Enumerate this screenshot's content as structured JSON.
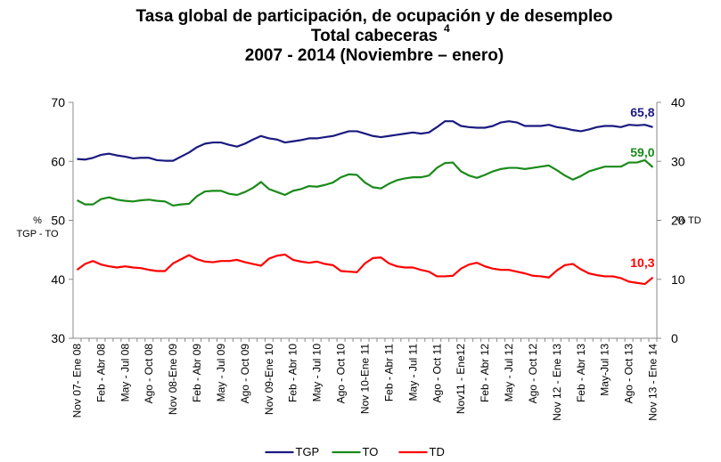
{
  "chart_data": {
    "type": "line",
    "title": [
      "Tasa global de participación, de ocupación y de desempleo",
      "Total cabeceras",
      "2007 - 2014 (Noviembre – enero)"
    ],
    "title_superscript": "4",
    "y_label": [
      "%",
      "TGP - TO"
    ],
    "y2_label": "% TD",
    "categories": [
      "Nov 07- Ene 08",
      null,
      null,
      "Feb - Abr 08",
      null,
      null,
      "May - Jul 08",
      null,
      null,
      "Ago - Oct 08",
      null,
      null,
      "Nov 08-Ene 09",
      null,
      null,
      "Feb - Abr 09",
      null,
      null,
      "May - Jul 09",
      null,
      null,
      "Ago - Oct 09",
      null,
      null,
      "Nov 09-Ene 10",
      null,
      null,
      "Feb - Abr 10",
      null,
      null,
      "May - Jul 10",
      null,
      null,
      "Ago - Oct 10",
      null,
      null,
      "Nov 10-Ene 11",
      null,
      null,
      "Feb - Abr 11",
      null,
      null,
      "May - Jul 11",
      null,
      null,
      "Ago - Oct 11",
      null,
      null,
      "Nov11 - Ene12",
      null,
      null,
      "Feb - Abr 12",
      null,
      null,
      "May - Jul 12",
      null,
      null,
      "Ago - Oct 12",
      null,
      null,
      "Nov 12 - Ene 13",
      null,
      null,
      "Feb - Abr 13",
      null,
      null,
      "May-Jul 13",
      null,
      null,
      "Ago - Oct 13",
      null,
      null,
      "Nov 13 - Ene 14"
    ],
    "ylim": [
      30,
      70
    ],
    "yticks": [
      30,
      40,
      50,
      60,
      70
    ],
    "y2lim": [
      0,
      40
    ],
    "y2ticks": [
      0,
      10,
      20,
      30,
      40
    ],
    "grid": false,
    "legend": "bottom",
    "series": [
      {
        "name": "TGP",
        "color": "#1a1a80",
        "values": [
          60.4,
          60.3,
          60.6,
          61.1,
          61.3,
          61.0,
          60.8,
          60.5,
          60.6,
          60.6,
          60.2,
          60.1,
          60.1,
          60.8,
          61.5,
          62.4,
          63.0,
          63.2,
          63.2,
          62.8,
          62.5,
          63.0,
          63.7,
          64.3,
          63.9,
          63.7,
          63.2,
          63.4,
          63.6,
          63.9,
          63.9,
          64.1,
          64.3,
          64.7,
          65.1,
          65.1,
          64.7,
          64.3,
          64.1,
          64.3,
          64.5,
          64.7,
          64.9,
          64.7,
          64.9,
          65.8,
          66.8,
          66.8,
          66.0,
          65.8,
          65.7,
          65.7,
          66.0,
          66.6,
          66.8,
          66.6,
          66.0,
          66.0,
          66.0,
          66.2,
          65.8,
          65.6,
          65.3,
          65.1,
          65.4,
          65.8,
          66.0,
          66.0,
          65.8,
          66.2,
          66.1,
          66.2,
          65.8
        ],
        "value_labels": [
          null,
          null,
          null,
          null,
          null,
          null,
          null,
          null,
          null,
          null,
          null,
          null,
          null,
          null,
          null,
          null,
          null,
          null,
          null,
          null,
          null,
          null,
          null,
          null,
          null,
          null,
          null,
          null,
          null,
          null,
          null,
          null,
          null,
          null,
          null,
          null,
          null,
          null,
          null,
          null,
          null,
          null,
          null,
          null,
          null,
          null,
          null,
          null,
          null,
          null,
          null,
          null,
          null,
          null,
          null,
          null,
          null,
          null,
          null,
          null,
          null,
          null,
          null,
          null,
          null,
          null,
          null,
          null,
          null,
          null,
          null,
          null,
          "65,8"
        ]
      },
      {
        "name": "TO",
        "color": "#1a8a1a",
        "values": [
          53.4,
          52.7,
          52.7,
          53.6,
          53.9,
          53.5,
          53.3,
          53.2,
          53.4,
          53.5,
          53.3,
          53.2,
          52.5,
          52.7,
          52.8,
          54.1,
          54.9,
          55.0,
          55.0,
          54.5,
          54.3,
          54.8,
          55.5,
          56.5,
          55.3,
          54.8,
          54.3,
          55.0,
          55.3,
          55.8,
          55.7,
          56.0,
          56.4,
          57.3,
          57.8,
          57.7,
          56.4,
          55.6,
          55.4,
          56.2,
          56.8,
          57.1,
          57.3,
          57.3,
          57.6,
          58.9,
          59.7,
          59.8,
          58.3,
          57.6,
          57.2,
          57.7,
          58.3,
          58.7,
          58.9,
          58.9,
          58.7,
          58.9,
          59.1,
          59.3,
          58.5,
          57.6,
          56.9,
          57.5,
          58.3,
          58.7,
          59.1,
          59.1,
          59.1,
          59.8,
          59.8,
          60.2,
          59.0
        ],
        "value_labels": [
          null,
          null,
          null,
          null,
          null,
          null,
          null,
          null,
          null,
          null,
          null,
          null,
          null,
          null,
          null,
          null,
          null,
          null,
          null,
          null,
          null,
          null,
          null,
          null,
          null,
          null,
          null,
          null,
          null,
          null,
          null,
          null,
          null,
          null,
          null,
          null,
          null,
          null,
          null,
          null,
          null,
          null,
          null,
          null,
          null,
          null,
          null,
          null,
          null,
          null,
          null,
          null,
          null,
          null,
          null,
          null,
          null,
          null,
          null,
          null,
          null,
          null,
          null,
          null,
          null,
          null,
          null,
          null,
          null,
          null,
          null,
          null,
          "59,0"
        ]
      },
      {
        "name": "TD",
        "color": "#ff0000",
        "axis": "y2",
        "values": [
          11.6,
          12.6,
          13.1,
          12.5,
          12.2,
          12.0,
          12.2,
          12.0,
          11.9,
          11.6,
          11.4,
          11.4,
          12.7,
          13.4,
          14.1,
          13.4,
          13.0,
          12.9,
          13.1,
          13.1,
          13.3,
          12.9,
          12.6,
          12.3,
          13.5,
          14.0,
          14.2,
          13.3,
          13.0,
          12.8,
          13.0,
          12.6,
          12.4,
          11.4,
          11.3,
          11.2,
          12.7,
          13.6,
          13.7,
          12.7,
          12.2,
          12.0,
          12.0,
          11.6,
          11.3,
          10.5,
          10.5,
          10.6,
          11.8,
          12.5,
          12.8,
          12.2,
          11.8,
          11.6,
          11.6,
          11.3,
          11.0,
          10.6,
          10.5,
          10.3,
          11.5,
          12.4,
          12.6,
          11.7,
          11.0,
          10.7,
          10.5,
          10.5,
          10.2,
          9.6,
          9.4,
          9.2,
          10.3
        ],
        "value_labels": [
          null,
          null,
          null,
          null,
          null,
          null,
          null,
          null,
          null,
          null,
          null,
          null,
          null,
          null,
          null,
          null,
          null,
          null,
          null,
          null,
          null,
          null,
          null,
          null,
          null,
          null,
          null,
          null,
          null,
          null,
          null,
          null,
          null,
          null,
          null,
          null,
          null,
          null,
          null,
          null,
          null,
          null,
          null,
          null,
          null,
          null,
          null,
          null,
          null,
          null,
          null,
          null,
          null,
          null,
          null,
          null,
          null,
          null,
          null,
          null,
          null,
          null,
          null,
          null,
          null,
          null,
          null,
          null,
          null,
          null,
          null,
          null,
          "10,3"
        ]
      }
    ]
  }
}
